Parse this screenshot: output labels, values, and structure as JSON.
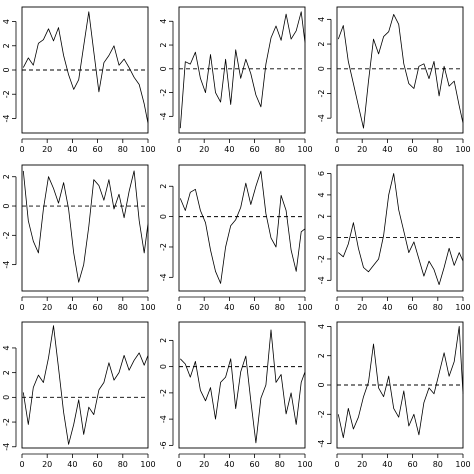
{
  "figure": {
    "layout": "3x3 grid",
    "background": "#ffffff",
    "line_color": "#000000"
  },
  "chart_data": [
    {
      "type": "line",
      "panel": 1,
      "xlim": [
        0,
        100
      ],
      "ylim": [
        -5.2,
        5.2
      ],
      "xticks": [
        0,
        20,
        40,
        60,
        80,
        100
      ],
      "yticks": [
        -4,
        -2,
        0,
        2,
        4
      ],
      "hline": 0,
      "hline_style": "dashed",
      "x": [
        1,
        5,
        9,
        13,
        17,
        21,
        25,
        29,
        33,
        37,
        41,
        45,
        49,
        53,
        57,
        61,
        65,
        69,
        73,
        77,
        81,
        85,
        89,
        93,
        97,
        100
      ],
      "y": [
        0.2,
        1.0,
        0.4,
        2.2,
        2.5,
        3.4,
        2.4,
        3.5,
        1.2,
        -0.4,
        -1.6,
        -0.8,
        2.0,
        4.8,
        1.5,
        -1.8,
        0.6,
        1.2,
        2.0,
        0.4,
        0.9,
        0.2,
        -0.6,
        -1.2,
        -2.8,
        -4.4
      ]
    },
    {
      "type": "line",
      "panel": 2,
      "xlim": [
        0,
        100
      ],
      "ylim": [
        -5.4,
        5.2
      ],
      "xticks": [
        0,
        20,
        40,
        60,
        80,
        100
      ],
      "yticks": [
        -4,
        -2,
        0,
        2,
        4
      ],
      "hline": 0,
      "hline_style": "dashed",
      "x": [
        1,
        5,
        9,
        13,
        17,
        21,
        25,
        29,
        33,
        37,
        41,
        45,
        49,
        53,
        57,
        61,
        65,
        69,
        73,
        77,
        81,
        85,
        89,
        93,
        97,
        100
      ],
      "y": [
        -5.0,
        0.6,
        0.4,
        1.4,
        -0.8,
        -2.0,
        1.2,
        -2.0,
        -2.8,
        0.8,
        -3.0,
        1.6,
        -0.8,
        0.8,
        -0.4,
        -2.2,
        -3.2,
        0.4,
        2.6,
        3.6,
        2.4,
        4.6,
        2.5,
        3.2,
        4.8,
        2.2
      ]
    },
    {
      "type": "line",
      "panel": 3,
      "xlim": [
        0,
        100
      ],
      "ylim": [
        -5.2,
        5.0
      ],
      "xticks": [
        0,
        20,
        40,
        60,
        80,
        100
      ],
      "yticks": [
        -4,
        -2,
        0,
        2,
        4
      ],
      "hline": 0,
      "hline_style": "dashed",
      "x": [
        1,
        5,
        9,
        13,
        17,
        21,
        25,
        29,
        33,
        37,
        41,
        45,
        49,
        53,
        57,
        61,
        65,
        69,
        73,
        77,
        81,
        85,
        89,
        93,
        97,
        100
      ],
      "y": [
        2.4,
        3.5,
        0.6,
        -1.2,
        -3.0,
        -4.8,
        -1.0,
        2.4,
        1.2,
        2.6,
        3.0,
        4.4,
        3.6,
        0.4,
        -1.2,
        -1.6,
        0.2,
        0.4,
        -0.8,
        0.6,
        -2.2,
        0.2,
        -1.4,
        -1.0,
        -3.0,
        -4.4
      ]
    },
    {
      "type": "line",
      "panel": 4,
      "xlim": [
        0,
        100
      ],
      "ylim": [
        -5.8,
        2.8
      ],
      "xticks": [
        0,
        20,
        40,
        60,
        80,
        100
      ],
      "yticks": [
        -4,
        -2,
        0,
        2
      ],
      "hline": 0,
      "hline_style": "dashed",
      "x": [
        1,
        5,
        9,
        13,
        17,
        21,
        25,
        29,
        33,
        37,
        41,
        45,
        49,
        53,
        57,
        61,
        65,
        69,
        73,
        77,
        81,
        85,
        89,
        93,
        97,
        100
      ],
      "y": [
        2.4,
        -1.0,
        -2.4,
        -3.2,
        -0.2,
        2.0,
        1.2,
        0.2,
        1.6,
        -0.2,
        -3.2,
        -5.2,
        -4.0,
        -1.4,
        1.8,
        1.4,
        0.4,
        1.8,
        -0.2,
        0.8,
        -0.8,
        1.0,
        2.4,
        -1.0,
        -3.2,
        -1.2
      ]
    },
    {
      "type": "line",
      "panel": 5,
      "xlim": [
        0,
        100
      ],
      "ylim": [
        -4.9,
        3.4
      ],
      "xticks": [
        0,
        20,
        40,
        60,
        80,
        100
      ],
      "yticks": [
        -4,
        -2,
        0,
        2
      ],
      "hline": 0,
      "hline_style": "dashed",
      "x": [
        1,
        5,
        9,
        13,
        17,
        21,
        25,
        29,
        33,
        37,
        41,
        45,
        49,
        53,
        57,
        61,
        65,
        69,
        73,
        77,
        81,
        85,
        89,
        93,
        97,
        100
      ],
      "y": [
        1.2,
        0.4,
        1.6,
        1.8,
        0.4,
        -0.4,
        -2.2,
        -3.6,
        -4.4,
        -2.0,
        -0.6,
        -0.2,
        0.6,
        2.2,
        0.8,
        2.0,
        3.0,
        0.2,
        -1.4,
        -2.0,
        1.4,
        0.4,
        -2.2,
        -3.6,
        -1.0,
        -0.8
      ]
    },
    {
      "type": "line",
      "panel": 6,
      "xlim": [
        0,
        100
      ],
      "ylim": [
        -5.0,
        6.8
      ],
      "xticks": [
        0,
        20,
        40,
        60,
        80,
        100
      ],
      "yticks": [
        -4,
        -2,
        0,
        2,
        4,
        6
      ],
      "hline": 0,
      "hline_style": "dashed",
      "x": [
        1,
        5,
        9,
        13,
        17,
        21,
        25,
        29,
        33,
        37,
        41,
        45,
        49,
        53,
        57,
        61,
        65,
        69,
        73,
        77,
        81,
        85,
        89,
        93,
        97,
        100
      ],
      "y": [
        -1.4,
        -1.8,
        -0.6,
        1.4,
        -1.0,
        -2.8,
        -3.2,
        -2.6,
        -2.0,
        0.2,
        4.0,
        6.0,
        2.6,
        0.6,
        -1.4,
        -0.4,
        -2.0,
        -3.6,
        -2.2,
        -3.0,
        -4.4,
        -2.8,
        -1.0,
        -2.6,
        -1.4,
        -2.2
      ]
    },
    {
      "type": "line",
      "panel": 7,
      "xlim": [
        0,
        100
      ],
      "ylim": [
        -4.1,
        6.1
      ],
      "xticks": [
        0,
        20,
        40,
        60,
        80,
        100
      ],
      "yticks": [
        -4,
        -2,
        0,
        2,
        4
      ],
      "hline": 0,
      "hline_style": "dashed",
      "x": [
        1,
        5,
        9,
        13,
        17,
        21,
        25,
        29,
        33,
        37,
        41,
        45,
        49,
        53,
        57,
        61,
        65,
        69,
        73,
        77,
        81,
        85,
        89,
        93,
        97,
        100
      ],
      "y": [
        0.4,
        -2.2,
        0.8,
        1.8,
        1.2,
        3.2,
        5.8,
        2.4,
        -1.2,
        -3.8,
        -2.2,
        -0.2,
        -3.0,
        -0.8,
        -1.4,
        0.6,
        1.2,
        2.8,
        1.4,
        2.0,
        3.4,
        2.2,
        3.0,
        3.6,
        2.6,
        3.4
      ]
    },
    {
      "type": "line",
      "panel": 8,
      "xlim": [
        0,
        100
      ],
      "ylim": [
        -6.2,
        3.4
      ],
      "xticks": [
        0,
        20,
        40,
        60,
        80,
        100
      ],
      "yticks": [
        -6,
        -4,
        -2,
        0,
        2
      ],
      "hline": 0,
      "hline_style": "dashed",
      "x": [
        1,
        5,
        9,
        13,
        17,
        21,
        25,
        29,
        33,
        37,
        41,
        45,
        49,
        53,
        57,
        61,
        65,
        69,
        73,
        77,
        81,
        85,
        89,
        93,
        97,
        100
      ],
      "y": [
        0.6,
        0.2,
        -0.8,
        0.4,
        -1.8,
        -2.6,
        -1.6,
        -4.0,
        -1.2,
        -0.8,
        0.6,
        -3.2,
        -0.4,
        0.8,
        -2.6,
        -5.8,
        -2.4,
        -1.4,
        2.8,
        -1.2,
        -0.6,
        -3.6,
        -2.0,
        -4.4,
        -1.2,
        -0.4
      ]
    },
    {
      "type": "line",
      "panel": 9,
      "xlim": [
        0,
        100
      ],
      "ylim": [
        -4.3,
        4.3
      ],
      "xticks": [
        0,
        20,
        40,
        60,
        80,
        100
      ],
      "yticks": [
        -4,
        -2,
        0,
        2,
        4
      ],
      "hline": 0,
      "hline_style": "dashed",
      "x": [
        1,
        5,
        9,
        13,
        17,
        21,
        25,
        29,
        33,
        37,
        41,
        45,
        49,
        53,
        57,
        61,
        65,
        69,
        73,
        77,
        81,
        85,
        89,
        93,
        97,
        100
      ],
      "y": [
        -2.0,
        -3.6,
        -1.6,
        -3.0,
        -2.2,
        -0.8,
        0.2,
        2.8,
        -0.2,
        -0.8,
        0.6,
        -1.6,
        -2.2,
        -0.4,
        -2.8,
        -2.0,
        -3.4,
        -1.2,
        -0.2,
        -0.6,
        0.8,
        2.2,
        0.6,
        1.6,
        4.0,
        -0.6
      ]
    }
  ]
}
